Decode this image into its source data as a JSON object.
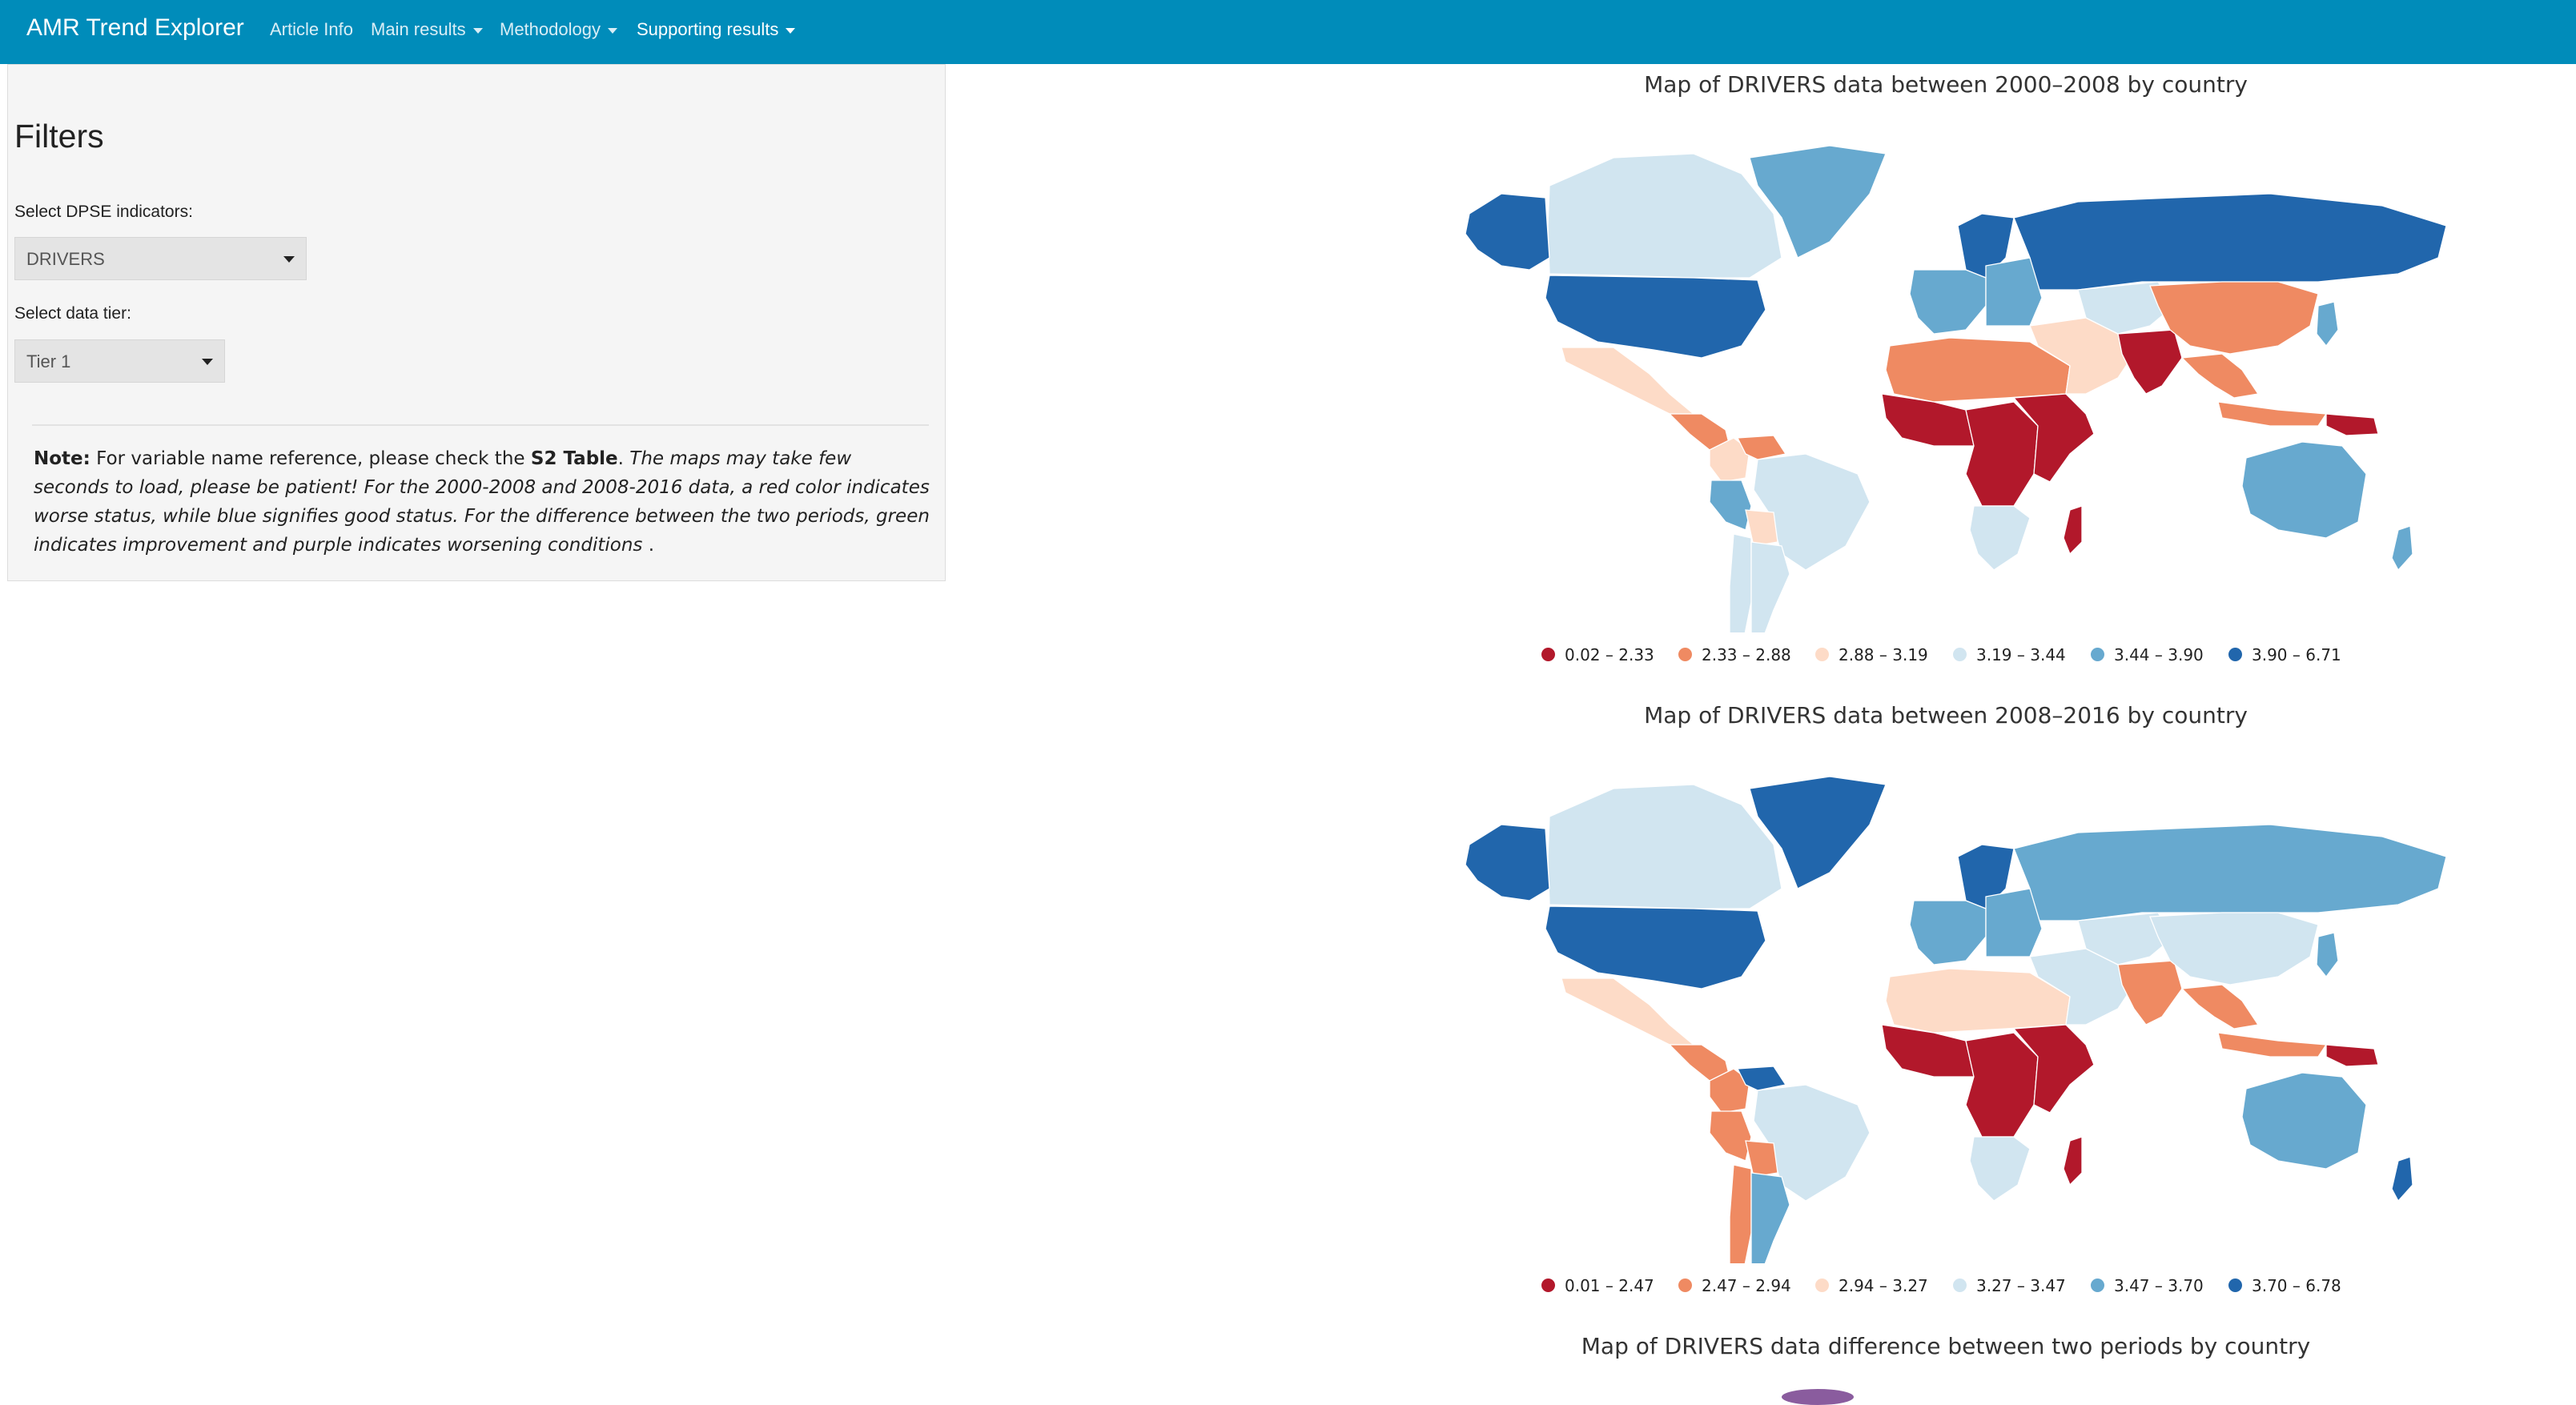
{
  "navbar": {
    "brand": "AMR Trend Explorer",
    "items": [
      {
        "label": "Article Info",
        "dropdown": false
      },
      {
        "label": "Main results",
        "dropdown": true
      },
      {
        "label": "Methodology",
        "dropdown": true
      },
      {
        "label": "Supporting results",
        "dropdown": true
      }
    ],
    "color": "#008cba"
  },
  "sidebar": {
    "title": "Filters",
    "dpse_label": "Select DPSE indicators:",
    "dpse_value": "DRIVERS",
    "tier_label": "Select data tier:",
    "tier_value": "Tier 1",
    "note": {
      "prefix": "Note:",
      "text1": " For variable name reference, please check the ",
      "bold_ref": "S2 Table",
      "text2": ". ",
      "italic": "The maps may take few seconds to load, please be patient! For the 2000-2008 and 2008-2016 data, a red color indicates worse status, while blue signifies good status. For the difference between the two periods, green indicates improvement and purple indicates worsening conditions",
      "suffix": " ."
    }
  },
  "palette": [
    "#b2182b",
    "#ef8a62",
    "#fddbc7",
    "#d1e5f0",
    "#67a9cf",
    "#2166ac"
  ],
  "maps": [
    {
      "title": "Map of DRIVERS data between 2000–2008 by country",
      "legend": [
        "0.02 – 2.33",
        "2.33 – 2.88",
        "2.88 – 3.19",
        "3.19 – 3.44",
        "3.44 – 3.90",
        "3.90 – 6.71"
      ],
      "regions": {
        "canada": 3,
        "alaska": 5,
        "usa": 5,
        "greenland": 4,
        "mexico": 2,
        "central_america": 1,
        "colombia": 2,
        "venezuela": 1,
        "peru": 4,
        "brazil": 3,
        "bolivia": 2,
        "chile": 3,
        "argentina": 3,
        "north_africa": 1,
        "west_africa": 0,
        "central_africa": 0,
        "east_africa": 0,
        "south_africa": 3,
        "madagascar": 0,
        "scandinavia": 5,
        "western_europe": 4,
        "eastern_europe": 4,
        "russia": 5,
        "middle_east": 2,
        "central_asia": 3,
        "india": 0,
        "china": 1,
        "southeast_asia": 1,
        "japan": 4,
        "indonesia": 1,
        "png": 0,
        "australia": 4,
        "new_zealand": 4
      }
    },
    {
      "title": "Map of DRIVERS data between 2008–2016 by country",
      "legend": [
        "0.01 – 2.47",
        "2.47 – 2.94",
        "2.94 – 3.27",
        "3.27 – 3.47",
        "3.47 – 3.70",
        "3.70 – 6.78"
      ],
      "regions": {
        "canada": 3,
        "alaska": 5,
        "usa": 5,
        "greenland": 5,
        "mexico": 2,
        "central_america": 1,
        "colombia": 1,
        "venezuela": 5,
        "peru": 1,
        "brazil": 3,
        "bolivia": 1,
        "chile": 1,
        "argentina": 4,
        "north_africa": 2,
        "west_africa": 0,
        "central_africa": 0,
        "east_africa": 0,
        "south_africa": 3,
        "madagascar": 0,
        "scandinavia": 5,
        "western_europe": 4,
        "eastern_europe": 4,
        "russia": 4,
        "middle_east": 3,
        "central_asia": 3,
        "india": 1,
        "china": 3,
        "southeast_asia": 1,
        "japan": 4,
        "indonesia": 1,
        "png": 0,
        "australia": 4,
        "new_zealand": 5
      }
    },
    {
      "title": "Map of DRIVERS data difference between two periods by country"
    }
  ]
}
